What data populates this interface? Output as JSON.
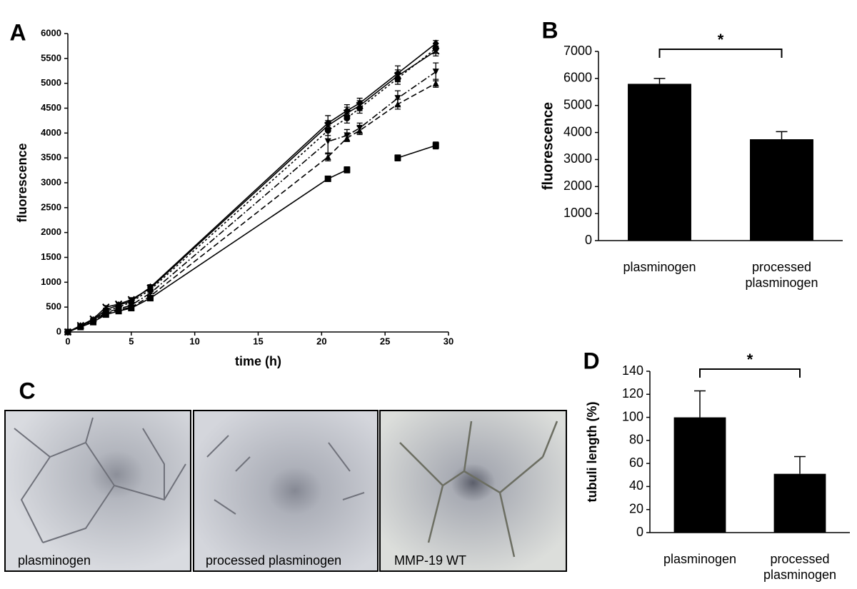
{
  "chart_data": [
    {
      "type": "line",
      "panel": "A",
      "x_label": "time (h)",
      "y_label": "fluorescence",
      "x": [
        0,
        1,
        2,
        3,
        4,
        5,
        6.5,
        20.5,
        22,
        23,
        26,
        29
      ],
      "xlim": [
        0,
        30
      ],
      "xticks": [
        0,
        5,
        10,
        15,
        20,
        25,
        30
      ],
      "ylim": [
        0,
        6000
      ],
      "yticks": [
        0,
        500,
        1000,
        1500,
        2000,
        2500,
        3000,
        3500,
        4000,
        4500,
        5000,
        5500,
        6000
      ],
      "series": [
        {
          "color": "#000000",
          "dash": "solid",
          "marker": "square",
          "values": [
            0,
            100,
            200,
            350,
            420,
            480,
            680,
            3080,
            3260,
            null,
            3500,
            3750
          ],
          "errors": [
            0,
            10,
            20,
            30,
            30,
            40,
            40,
            30,
            60,
            null,
            60,
            70
          ]
        },
        {
          "color": "#000000",
          "dash": "dashed",
          "marker": "triangle",
          "values": [
            0,
            100,
            200,
            380,
            440,
            500,
            720,
            3520,
            3900,
            4050,
            4580,
            5000
          ],
          "errors": [
            0,
            10,
            20,
            30,
            30,
            40,
            50,
            80,
            60,
            80,
            100,
            80
          ]
        },
        {
          "color": "#000000",
          "dash": "dashdot",
          "marker": "invtriangle",
          "values": [
            0,
            110,
            220,
            400,
            460,
            540,
            780,
            3830,
            3950,
            4100,
            4700,
            5230
          ],
          "errors": [
            0,
            10,
            20,
            30,
            40,
            40,
            50,
            250,
            120,
            100,
            150,
            180
          ]
        },
        {
          "color": "#000000",
          "dash": "solid",
          "marker": "diamond",
          "values": [
            0,
            120,
            240,
            450,
            540,
            620,
            900,
            4200,
            4450,
            4600,
            5200,
            5800
          ],
          "errors": [
            0,
            10,
            20,
            30,
            40,
            50,
            50,
            150,
            120,
            100,
            150,
            60
          ]
        },
        {
          "color": "#000000",
          "dash": "dotted",
          "marker": "circle",
          "values": [
            0,
            110,
            220,
            420,
            500,
            600,
            850,
            4050,
            4300,
            4500,
            5100,
            5700
          ],
          "errors": [
            0,
            10,
            20,
            30,
            30,
            40,
            50,
            100,
            100,
            100,
            120,
            100
          ]
        },
        {
          "color": "#000000",
          "dash": "solid",
          "marker": "x",
          "values": [
            0,
            130,
            260,
            500,
            560,
            650,
            880,
            4150,
            4400,
            4550,
            5150,
            5650
          ],
          "errors": [
            0,
            10,
            20,
            30,
            30,
            40,
            50,
            100,
            120,
            100,
            120,
            100
          ]
        }
      ]
    },
    {
      "type": "bar",
      "panel": "B",
      "y_label": "fluorescence",
      "annotation": "*",
      "categories": [
        "plasminogen",
        "processed plasminogen"
      ],
      "values": [
        5800,
        3750
      ],
      "errors": [
        200,
        280
      ],
      "color": "#000000",
      "ylim": [
        0,
        7000
      ],
      "yticks": [
        0,
        1000,
        2000,
        3000,
        4000,
        5000,
        6000,
        7000
      ]
    },
    {
      "type": "bar",
      "panel": "D",
      "y_label": "tubuli length (%)",
      "annotation": "*",
      "categories": [
        "plasminogen",
        "processed plasminogen"
      ],
      "values": [
        100,
        51
      ],
      "errors": [
        23,
        15
      ],
      "color": "#000000",
      "ylim": [
        0,
        140
      ],
      "yticks": [
        0,
        20,
        40,
        60,
        80,
        100,
        120,
        140
      ]
    }
  ],
  "image_panel": {
    "panel": "C",
    "captions": [
      "plasminogen",
      "processed plasminogen",
      "MMP-19 WT"
    ]
  }
}
